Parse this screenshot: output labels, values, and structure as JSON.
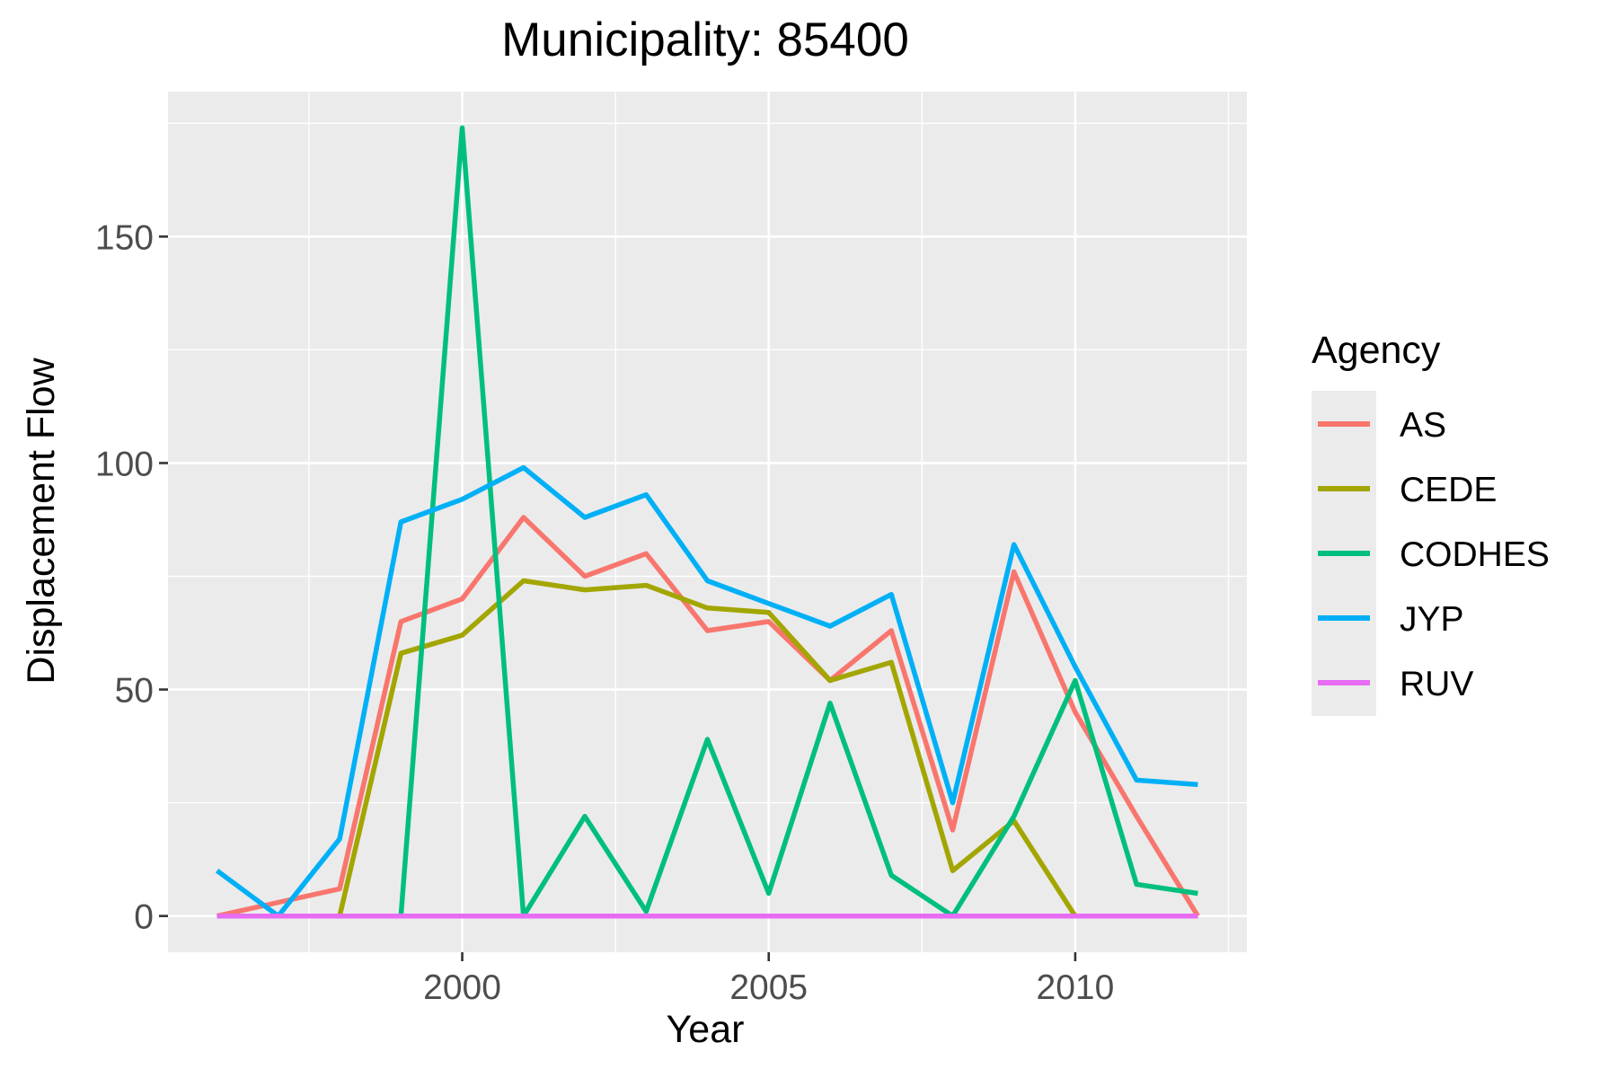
{
  "chart_data": {
    "type": "line",
    "title": "Municipality: 85400",
    "xlabel": "Year",
    "ylabel": "Displacement Flow",
    "xlim": [
      1995.2,
      2012.8
    ],
    "ylim": [
      -8,
      182
    ],
    "x_ticks": [
      2000,
      2005,
      2010
    ],
    "y_ticks": [
      0,
      50,
      100,
      150
    ],
    "grid": true,
    "legend": {
      "title": "Agency",
      "placement": "right"
    },
    "x": [
      1996,
      1997,
      1998,
      1999,
      2000,
      2001,
      2002,
      2003,
      2004,
      2005,
      2006,
      2007,
      2008,
      2009,
      2010,
      2011,
      2012
    ],
    "series": [
      {
        "name": "AS",
        "color": "#F8766D",
        "values": [
          0,
          3,
          6,
          65,
          70,
          88,
          75,
          80,
          63,
          65,
          52,
          63,
          19,
          76,
          45,
          22,
          0
        ]
      },
      {
        "name": "CEDE",
        "color": "#A3A500",
        "values": [
          0,
          0,
          0,
          58,
          62,
          74,
          72,
          73,
          68,
          67,
          52,
          56,
          10,
          21,
          0,
          0,
          0
        ]
      },
      {
        "name": "CODHES",
        "color": "#00BF7D",
        "values": [
          0,
          0,
          0,
          0,
          174,
          0,
          22,
          1,
          39,
          5,
          47,
          9,
          0,
          22,
          52,
          7,
          5
        ]
      },
      {
        "name": "JYP",
        "color": "#00B0F6",
        "values": [
          10,
          0,
          17,
          87,
          92,
          99,
          88,
          93,
          74,
          69,
          64,
          71,
          25,
          82,
          55,
          30,
          29
        ]
      },
      {
        "name": "RUV",
        "color": "#E76BF3",
        "values": [
          0,
          0,
          0,
          0,
          0,
          0,
          0,
          0,
          0,
          0,
          0,
          0,
          0,
          0,
          0,
          0,
          0
        ]
      }
    ]
  }
}
